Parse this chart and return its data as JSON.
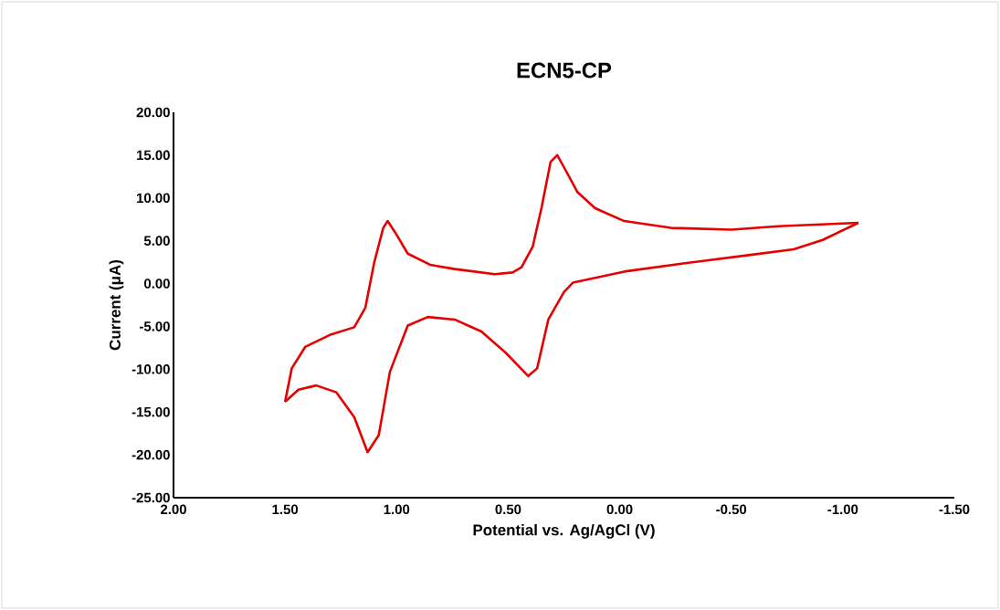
{
  "chart_data": {
    "type": "line",
    "title": "ECN5-CP",
    "xlabel": "Potential vs. Ag/AgCl (V)",
    "ylabel": "Current (μA)",
    "series": [
      {
        "color": "#e60000",
        "x": [
          -1.07,
          -0.71,
          -0.5,
          -0.23,
          -0.02,
          0.11,
          0.19,
          0.25,
          0.28,
          0.31,
          0.35,
          0.39,
          0.44,
          0.48,
          0.56,
          0.74,
          0.85,
          0.95,
          1.0,
          1.04,
          1.06,
          1.1,
          1.14,
          1.19,
          1.3,
          1.41,
          1.47,
          1.5
        ],
        "values": [
          7.1,
          6.7,
          6.3,
          6.5,
          7.3,
          8.8,
          10.7,
          13.6,
          15.0,
          14.2,
          8.9,
          4.3,
          1.9,
          1.3,
          1.1,
          1.7,
          2.2,
          3.5,
          5.7,
          7.3,
          6.5,
          2.5,
          -2.8,
          -5.1,
          -6.0,
          -7.4,
          -9.9,
          -13.8
        ]
      },
      {
        "color": "#e60000",
        "x": [
          1.5,
          1.44,
          1.36,
          1.27,
          1.19,
          1.13,
          1.08,
          1.03,
          0.95,
          0.86,
          0.74,
          0.62,
          0.51,
          0.41,
          0.37,
          0.32,
          0.25,
          0.21,
          -0.02,
          -0.3,
          -0.57,
          -0.78,
          -0.91,
          -1.07
        ],
        "values": [
          -13.8,
          -12.4,
          -11.9,
          -12.7,
          -15.6,
          -19.7,
          -17.7,
          -10.3,
          -4.9,
          -3.9,
          -4.2,
          -5.6,
          -8.1,
          -10.8,
          -9.9,
          -4.2,
          -1.0,
          0.1,
          1.4,
          2.4,
          3.3,
          4.0,
          5.1,
          7.1
        ]
      }
    ],
    "xlim": [
      2.0,
      -1.5
    ],
    "xticks": [
      {
        "value": 2.0,
        "label": "2.00"
      },
      {
        "value": 1.5,
        "label": "1.50"
      },
      {
        "value": 1.0,
        "label": "1.00"
      },
      {
        "value": 0.5,
        "label": "0.50"
      },
      {
        "value": 0.0,
        "label": "0.00"
      },
      {
        "value": -0.5,
        "label": "-0.50"
      },
      {
        "value": -1.0,
        "label": "-1.00"
      },
      {
        "value": -1.5,
        "label": "-1.50"
      }
    ],
    "ylim": [
      -25,
      20
    ],
    "yticks": [
      {
        "value": -25,
        "label": "-25.00"
      },
      {
        "value": -20,
        "label": "-20.00"
      },
      {
        "value": -15,
        "label": "-15.00"
      },
      {
        "value": -10,
        "label": "-10.00"
      },
      {
        "value": -5,
        "label": "-5.00"
      },
      {
        "value": 0,
        "label": "0.00"
      },
      {
        "value": 5,
        "label": "5.00"
      },
      {
        "value": 10,
        "label": "10.00"
      },
      {
        "value": 15,
        "label": "15.00"
      },
      {
        "value": 20,
        "label": "20.00"
      }
    ],
    "grid": false,
    "legend": false,
    "marker": "none",
    "line_style": "solid"
  }
}
